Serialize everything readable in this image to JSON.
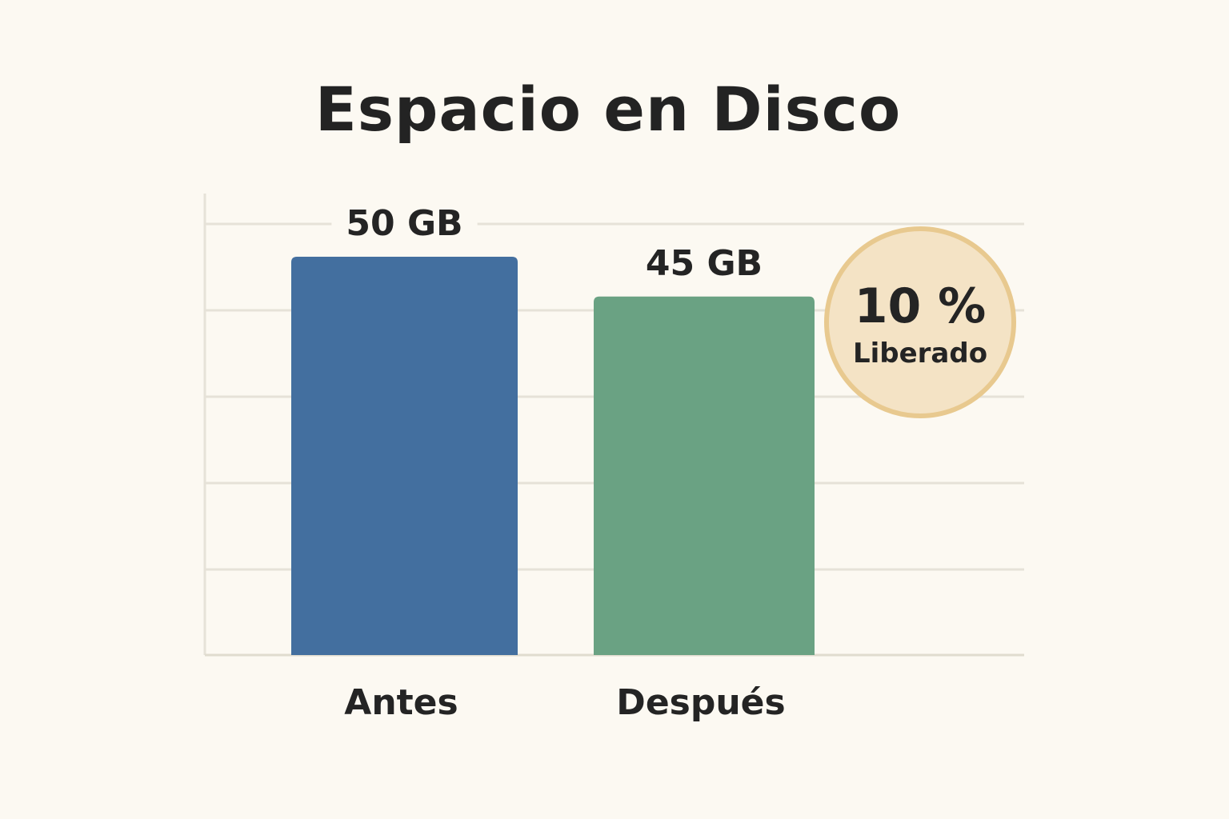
{
  "chart_data": {
    "type": "bar",
    "title": "Espacio en Disco",
    "categories": [
      "Antes",
      "Después"
    ],
    "values": [
      50,
      45
    ],
    "value_labels": [
      "50 GB",
      "45 GB"
    ],
    "unit": "GB",
    "colors": [
      "#436f9f",
      "#6aa283"
    ],
    "ylim": [
      0,
      50
    ],
    "grid": true,
    "annotation": {
      "value": "10 %",
      "label": "Liberado",
      "fill": "#f4e3c5",
      "stroke": "#e8c98f"
    }
  }
}
